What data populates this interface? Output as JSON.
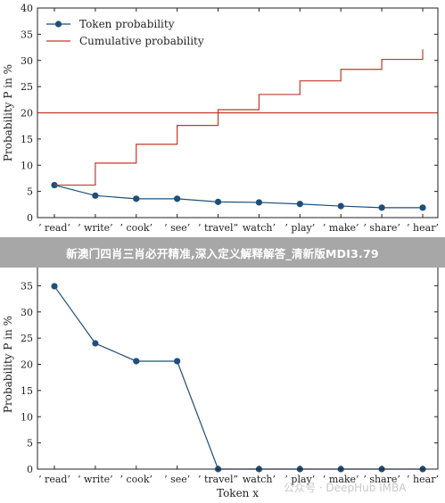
{
  "banner_text": "新澳门四肖三肖必开精准,深入定义解释解答_清新版MDI3.79",
  "watermark": "公众号 · DeepHub IMBA",
  "chart_data": [
    {
      "type": "line",
      "title": "",
      "xlabel": "",
      "ylabel": "Probability P in %",
      "ylim": [
        0,
        40
      ],
      "yticks": [
        0,
        5,
        10,
        15,
        20,
        25,
        30,
        35,
        40
      ],
      "categories": [
        "’ read’",
        "’ write’",
        "’ cook’",
        "’ see’",
        "’ travel”",
        "watch’",
        "’ play’",
        "’ make’",
        "’ share’",
        "’ hear’"
      ],
      "legend": "top-left",
      "reference_line": {
        "y": 20,
        "color": "#c0392b"
      },
      "series": [
        {
          "name": "Token probability",
          "style": "line-marker",
          "color": "#1f4e79",
          "values": [
            6.2,
            4.2,
            3.6,
            3.6,
            3.0,
            2.9,
            2.6,
            2.2,
            1.9,
            1.9
          ]
        },
        {
          "name": "Cumulative probability",
          "style": "step",
          "color": "#c0392b",
          "values": [
            6.2,
            10.4,
            14.0,
            17.6,
            20.6,
            23.5,
            26.1,
            28.3,
            30.2,
            32.1
          ]
        }
      ]
    },
    {
      "type": "line",
      "title": "",
      "xlabel": "Token x",
      "ylabel": "Probability P in %",
      "ylim": [
        0,
        40
      ],
      "yticks": [
        0,
        5,
        10,
        15,
        20,
        25,
        30,
        35
      ],
      "categories": [
        "’ read’",
        "’ write’",
        "’ cook’",
        "’ see’",
        "’ travel”",
        "watch’",
        "’ play’",
        "’ make’",
        "’ share’",
        "’ hear’"
      ],
      "series": [
        {
          "color": "#1f4e79",
          "style": "line-marker",
          "values": [
            34.9,
            24.0,
            20.6,
            20.6,
            0,
            0,
            0,
            0,
            0,
            0
          ]
        }
      ]
    }
  ]
}
